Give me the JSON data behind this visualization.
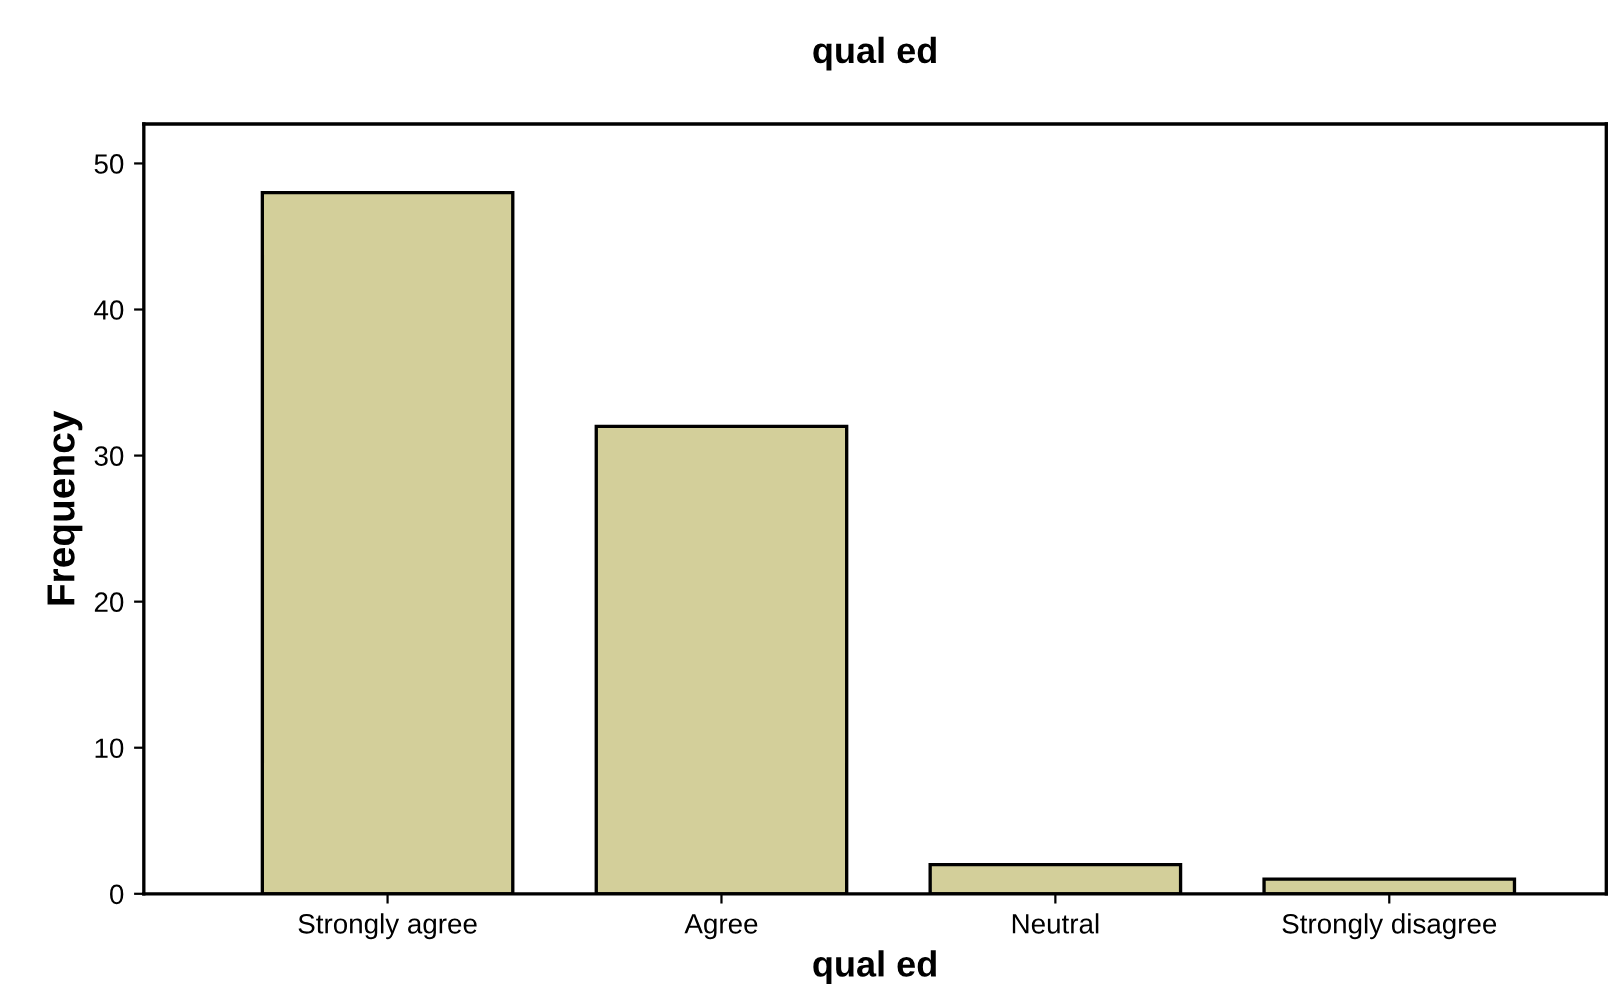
{
  "chart_data": {
    "type": "bar",
    "title": "qual ed",
    "xlabel": "qual ed",
    "ylabel": "Frequency",
    "categories": [
      "Strongly agree",
      "Agree",
      "Neutral",
      "Strongly disagree"
    ],
    "values": [
      48,
      32,
      2,
      1
    ],
    "color": "#d3cf9a",
    "ylim": [
      0,
      52.7
    ],
    "yticks": [
      0,
      10,
      20,
      30,
      40,
      50
    ],
    "grid": false
  }
}
